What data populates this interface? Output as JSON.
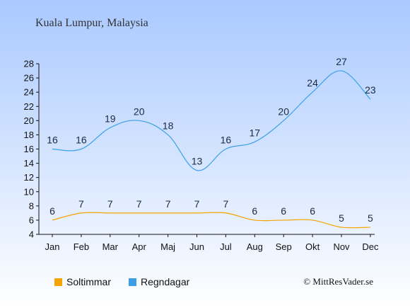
{
  "title": "Kuala Lumpur, Malaysia",
  "credit": "© MittResVader.se",
  "colors": {
    "bg_top": "#a9c9ff",
    "bg_bottom": "#ffffff",
    "rain": "#3b9fe8",
    "sun": "#f5a300",
    "text": "#1a2a40"
  },
  "chart_data": {
    "type": "line",
    "categories": [
      "Jan",
      "Feb",
      "Mar",
      "Apr",
      "Maj",
      "Jun",
      "Jul",
      "Aug",
      "Sep",
      "Okt",
      "Nov",
      "Dec"
    ],
    "series": [
      {
        "name": "Soltimmar",
        "values": [
          6,
          7,
          7,
          7,
          7,
          7,
          7,
          6,
          6,
          6,
          5,
          5
        ],
        "color": "#f5a300"
      },
      {
        "name": "Regndagar",
        "values": [
          16,
          16,
          19,
          20,
          18,
          13,
          16,
          17,
          20,
          24,
          27,
          23
        ],
        "color": "#3b9fe8"
      }
    ],
    "y_ticks": [
      4,
      6,
      8,
      10,
      12,
      14,
      16,
      18,
      20,
      22,
      24,
      26,
      28
    ],
    "ylim": [
      4,
      28
    ],
    "grid": false,
    "legend_position": "bottom-left"
  }
}
